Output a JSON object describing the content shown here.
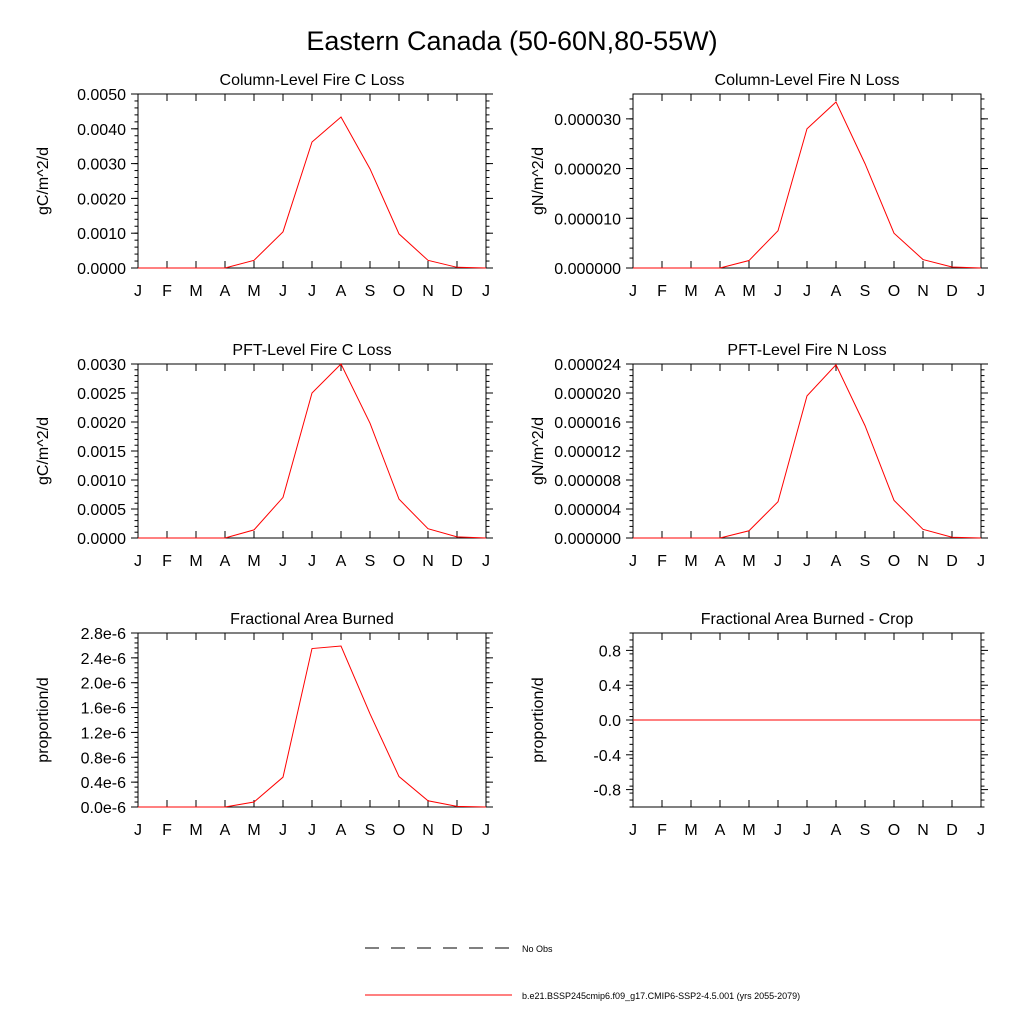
{
  "figure": {
    "title": "Eastern Canada (50-60N,80-55W)"
  },
  "legend": {
    "entries": [
      {
        "label": "No Obs",
        "color": "#000000",
        "style": "dashed"
      },
      {
        "label": "b.e21.BSSP245cmip6.f09_g17.CMIP6-SSP2-4.5.001 (yrs 2055-2079)",
        "color": "#ff0000",
        "style": "solid"
      }
    ]
  },
  "chart_data": [
    {
      "type": "line",
      "title": "Column-Level Fire C Loss",
      "ylabel": "gC/m^2/d",
      "categories": [
        "J",
        "F",
        "M",
        "A",
        "M",
        "J",
        "J",
        "A",
        "S",
        "O",
        "N",
        "D",
        "J"
      ],
      "ylim": [
        0,
        0.005
      ],
      "yticks": [
        "0.0000",
        "0.0010",
        "0.0020",
        "0.0030",
        "0.0040",
        "0.0050"
      ],
      "series": [
        {
          "color": "#ff0000",
          "values": [
            0,
            0,
            0,
            0,
            0.00022,
            0.00104,
            0.00362,
            0.00434,
            0.00285,
            0.00098,
            0.00022,
            2e-05,
            0
          ]
        }
      ]
    },
    {
      "type": "line",
      "title": "Column-Level Fire N Loss",
      "ylabel": "gN/m^2/d",
      "categories": [
        "J",
        "F",
        "M",
        "A",
        "M",
        "J",
        "J",
        "A",
        "S",
        "O",
        "N",
        "D",
        "J"
      ],
      "ylim": [
        0,
        3.5e-05
      ],
      "yticks": [
        "0.000000",
        "0.000010",
        "0.000020",
        "0.000030"
      ],
      "series": [
        {
          "color": "#ff0000",
          "values": [
            0,
            0,
            0,
            0,
            1.5e-06,
            7.5e-06,
            2.8e-05,
            3.34e-05,
            2.1e-05,
            7e-06,
            1.7e-06,
            2e-07,
            0
          ]
        }
      ]
    },
    {
      "type": "line",
      "title": "PFT-Level Fire C Loss",
      "ylabel": "gC/m^2/d",
      "categories": [
        "J",
        "F",
        "M",
        "A",
        "M",
        "J",
        "J",
        "A",
        "S",
        "O",
        "N",
        "D",
        "J"
      ],
      "ylim": [
        0,
        0.003
      ],
      "yticks": [
        "0.0000",
        "0.0005",
        "0.0010",
        "0.0015",
        "0.0020",
        "0.0025",
        "0.0030"
      ],
      "series": [
        {
          "color": "#ff0000",
          "values": [
            0,
            0,
            0,
            0,
            0.00014,
            0.0007,
            0.0025,
            0.003,
            0.00198,
            0.00067,
            0.00016,
            2e-05,
            0
          ]
        }
      ]
    },
    {
      "type": "line",
      "title": "PFT-Level Fire N Loss",
      "ylabel": "gN/m^2/d",
      "categories": [
        "J",
        "F",
        "M",
        "A",
        "M",
        "J",
        "J",
        "A",
        "S",
        "O",
        "N",
        "D",
        "J"
      ],
      "ylim": [
        0,
        2.4e-05
      ],
      "yticks": [
        "0.000000",
        "0.000004",
        "0.000008",
        "0.000012",
        "0.000016",
        "0.000020",
        "0.000024"
      ],
      "series": [
        {
          "color": "#ff0000",
          "values": [
            0,
            0,
            0,
            0,
            1e-06,
            5e-06,
            1.96e-05,
            2.39e-05,
            1.55e-05,
            5.2e-06,
            1.2e-06,
            1e-07,
            0
          ]
        }
      ]
    },
    {
      "type": "line",
      "title": "Fractional Area Burned",
      "ylabel": "proportion/d",
      "categories": [
        "J",
        "F",
        "M",
        "A",
        "M",
        "J",
        "J",
        "A",
        "S",
        "O",
        "N",
        "D",
        "J"
      ],
      "ylim": [
        0,
        2.8e-06
      ],
      "yticks": [
        "0.0e-6",
        "0.4e-6",
        "0.8e-6",
        "1.2e-6",
        "1.6e-6",
        "2.0e-6",
        "2.4e-6",
        "2.8e-6"
      ],
      "series": [
        {
          "color": "#ff0000",
          "values": [
            0,
            0,
            0,
            0,
            8e-08,
            4.8e-07,
            2.55e-06,
            2.59e-06,
            1.5e-06,
            4.9e-07,
            1e-07,
            1e-08,
            0
          ]
        }
      ]
    },
    {
      "type": "line",
      "title": "Fractional Area Burned - Crop",
      "ylabel": "proportion/d",
      "categories": [
        "J",
        "F",
        "M",
        "A",
        "M",
        "J",
        "J",
        "A",
        "S",
        "O",
        "N",
        "D",
        "J"
      ],
      "ylim": [
        -1,
        1
      ],
      "yticks": [
        "-0.8",
        "-0.4",
        "0.0",
        "0.4",
        "0.8"
      ],
      "series": [
        {
          "color": "#ff0000",
          "values": [
            0,
            0,
            0,
            0,
            0,
            0,
            0,
            0,
            0,
            0,
            0,
            0,
            0
          ]
        }
      ]
    }
  ]
}
